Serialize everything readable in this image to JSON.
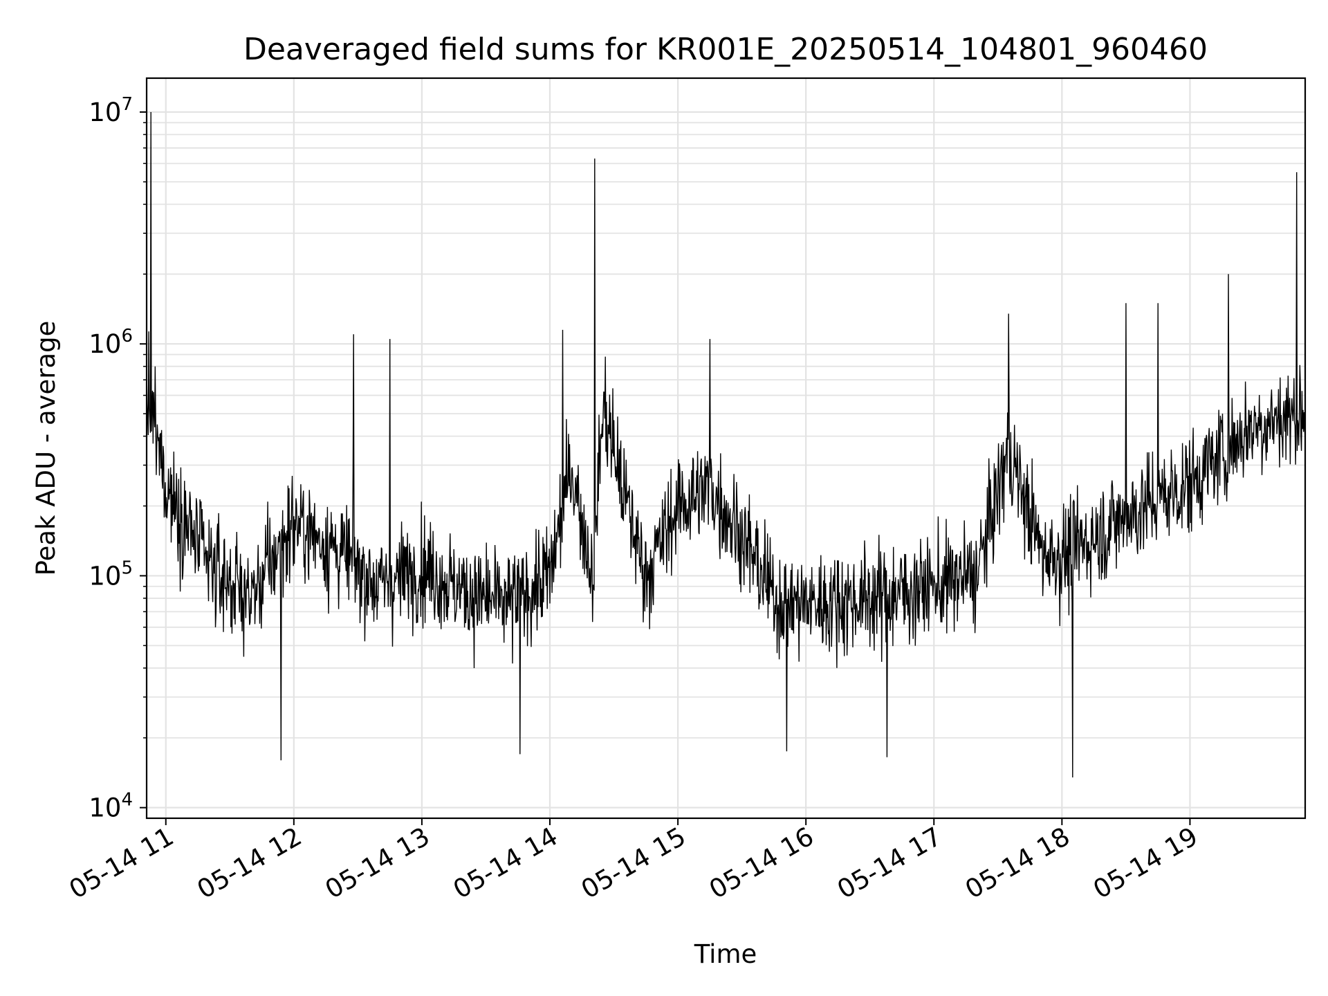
{
  "chart_data": {
    "type": "line",
    "title": "Deaveraged field sums for KR001E_20250514_104801_960460",
    "xlabel": "Time",
    "ylabel": "Peak ADU - average",
    "yscale": "log",
    "ylim": [
      9000,
      14000000
    ],
    "xlim": [
      "2025-05-14 10:51",
      "2025-05-14 19:54"
    ],
    "grid": true,
    "x_ticks": [
      "2025-05-14 11:00",
      "2025-05-14 12:00",
      "2025-05-14 13:00",
      "2025-05-14 14:00",
      "2025-05-14 15:00",
      "2025-05-14 16:00",
      "2025-05-14 17:00",
      "2025-05-14 18:00",
      "2025-05-14 19:00"
    ],
    "x_tick_labels": [
      "05-14 11",
      "05-14 12",
      "05-14 13",
      "05-14 14",
      "05-14 15",
      "05-14 16",
      "05-14 17",
      "05-14 18",
      "05-14 19"
    ],
    "y_ticks": [
      10000,
      100000,
      1000000,
      10000000
    ],
    "y_tick_labels": [
      {
        "base": "10",
        "exp": "4"
      },
      {
        "base": "10",
        "exp": "5"
      },
      {
        "base": "10",
        "exp": "6"
      },
      {
        "base": "10",
        "exp": "7"
      }
    ],
    "series": [
      {
        "color": "#000000",
        "sample_interval_min": 0.25,
        "trend": [
          {
            "x": "2025-05-14 10:51",
            "y": 600000
          },
          {
            "x": "2025-05-14 11:00",
            "y": 250000
          },
          {
            "x": "2025-05-14 11:20",
            "y": 110000
          },
          {
            "x": "2025-05-14 11:40",
            "y": 80000
          },
          {
            "x": "2025-05-14 12:00",
            "y": 170000
          },
          {
            "x": "2025-05-14 12:20",
            "y": 130000
          },
          {
            "x": "2025-05-14 12:40",
            "y": 90000
          },
          {
            "x": "2025-05-14 13:00",
            "y": 110000
          },
          {
            "x": "2025-05-14 13:20",
            "y": 85000
          },
          {
            "x": "2025-05-14 13:40",
            "y": 75000
          },
          {
            "x": "2025-05-14 14:00",
            "y": 100000
          },
          {
            "x": "2025-05-14 14:10",
            "y": 300000
          },
          {
            "x": "2025-05-14 14:20",
            "y": 100000
          },
          {
            "x": "2025-05-14 14:25",
            "y": 550000
          },
          {
            "x": "2025-05-14 14:35",
            "y": 220000
          },
          {
            "x": "2025-05-14 14:45",
            "y": 100000
          },
          {
            "x": "2025-05-14 15:00",
            "y": 200000
          },
          {
            "x": "2025-05-14 15:15",
            "y": 240000
          },
          {
            "x": "2025-05-14 15:30",
            "y": 150000
          },
          {
            "x": "2025-05-14 15:45",
            "y": 80000
          },
          {
            "x": "2025-05-14 16:00",
            "y": 75000
          },
          {
            "x": "2025-05-14 16:30",
            "y": 80000
          },
          {
            "x": "2025-05-14 17:00",
            "y": 90000
          },
          {
            "x": "2025-05-14 17:20",
            "y": 100000
          },
          {
            "x": "2025-05-14 17:35",
            "y": 350000
          },
          {
            "x": "2025-05-14 17:50",
            "y": 130000
          },
          {
            "x": "2025-05-14 18:00",
            "y": 120000
          },
          {
            "x": "2025-05-14 18:30",
            "y": 180000
          },
          {
            "x": "2025-05-14 19:00",
            "y": 250000
          },
          {
            "x": "2025-05-14 19:30",
            "y": 450000
          },
          {
            "x": "2025-05-14 19:54",
            "y": 500000
          }
        ],
        "spikes": [
          {
            "x": "2025-05-14 10:53",
            "y": 10000000
          },
          {
            "x": "2025-05-14 10:55",
            "y": 800000
          },
          {
            "x": "2025-05-14 11:54",
            "y": 16000
          },
          {
            "x": "2025-05-14 12:28",
            "y": 1100000
          },
          {
            "x": "2025-05-14 12:45",
            "y": 1050000
          },
          {
            "x": "2025-05-14 13:46",
            "y": 17000
          },
          {
            "x": "2025-05-14 14:06",
            "y": 1150000
          },
          {
            "x": "2025-05-14 14:21",
            "y": 6300000
          },
          {
            "x": "2025-05-14 15:15",
            "y": 1050000
          },
          {
            "x": "2025-05-14 15:51",
            "y": 17500
          },
          {
            "x": "2025-05-14 16:38",
            "y": 16500
          },
          {
            "x": "2025-05-14 17:35",
            "y": 1350000
          },
          {
            "x": "2025-05-14 18:05",
            "y": 13500
          },
          {
            "x": "2025-05-14 18:30",
            "y": 1500000
          },
          {
            "x": "2025-05-14 18:45",
            "y": 1500000
          },
          {
            "x": "2025-05-14 19:18",
            "y": 2000000
          },
          {
            "x": "2025-05-14 19:50",
            "y": 5500000
          }
        ]
      }
    ]
  }
}
